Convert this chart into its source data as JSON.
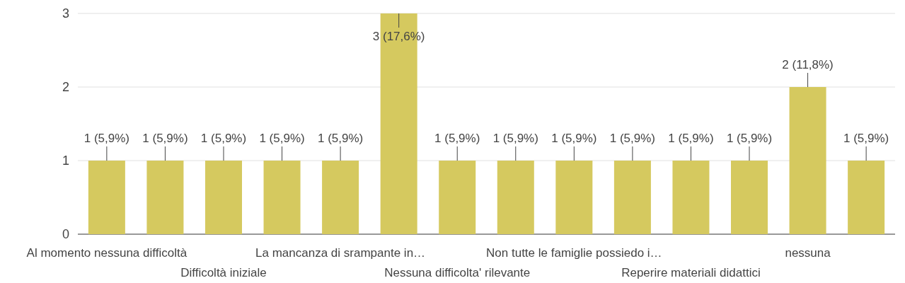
{
  "chart_data": {
    "type": "bar",
    "categories": [
      "Al momento nessuna difficoltà",
      null,
      "Difficoltà iniziale",
      null,
      "La mancanza di srampante in…",
      null,
      "Nessuna difficolta' rilevante",
      null,
      "Non tutte le famiglie possiedo i…",
      null,
      "Reperire materiali didattici",
      null,
      "nessuna",
      null
    ],
    "values": [
      1,
      1,
      1,
      1,
      1,
      3,
      1,
      1,
      1,
      1,
      1,
      1,
      2,
      1
    ],
    "value_labels": [
      "1 (5,9%)",
      "1 (5,9%)",
      "1 (5,9%)",
      "1 (5,9%)",
      "1 (5,9%)",
      "3 (17,6%)",
      "1 (5,9%)",
      "1 (5,9%)",
      "1 (5,9%)",
      "1 (5,9%)",
      "1 (5,9%)",
      "1 (5,9%)",
      "2 (11,8%)",
      "1 (5,9%)"
    ],
    "color": "#d5c95f",
    "ylim": [
      0,
      3
    ],
    "yticks": [
      0,
      1,
      2,
      3
    ],
    "grid": "y"
  }
}
